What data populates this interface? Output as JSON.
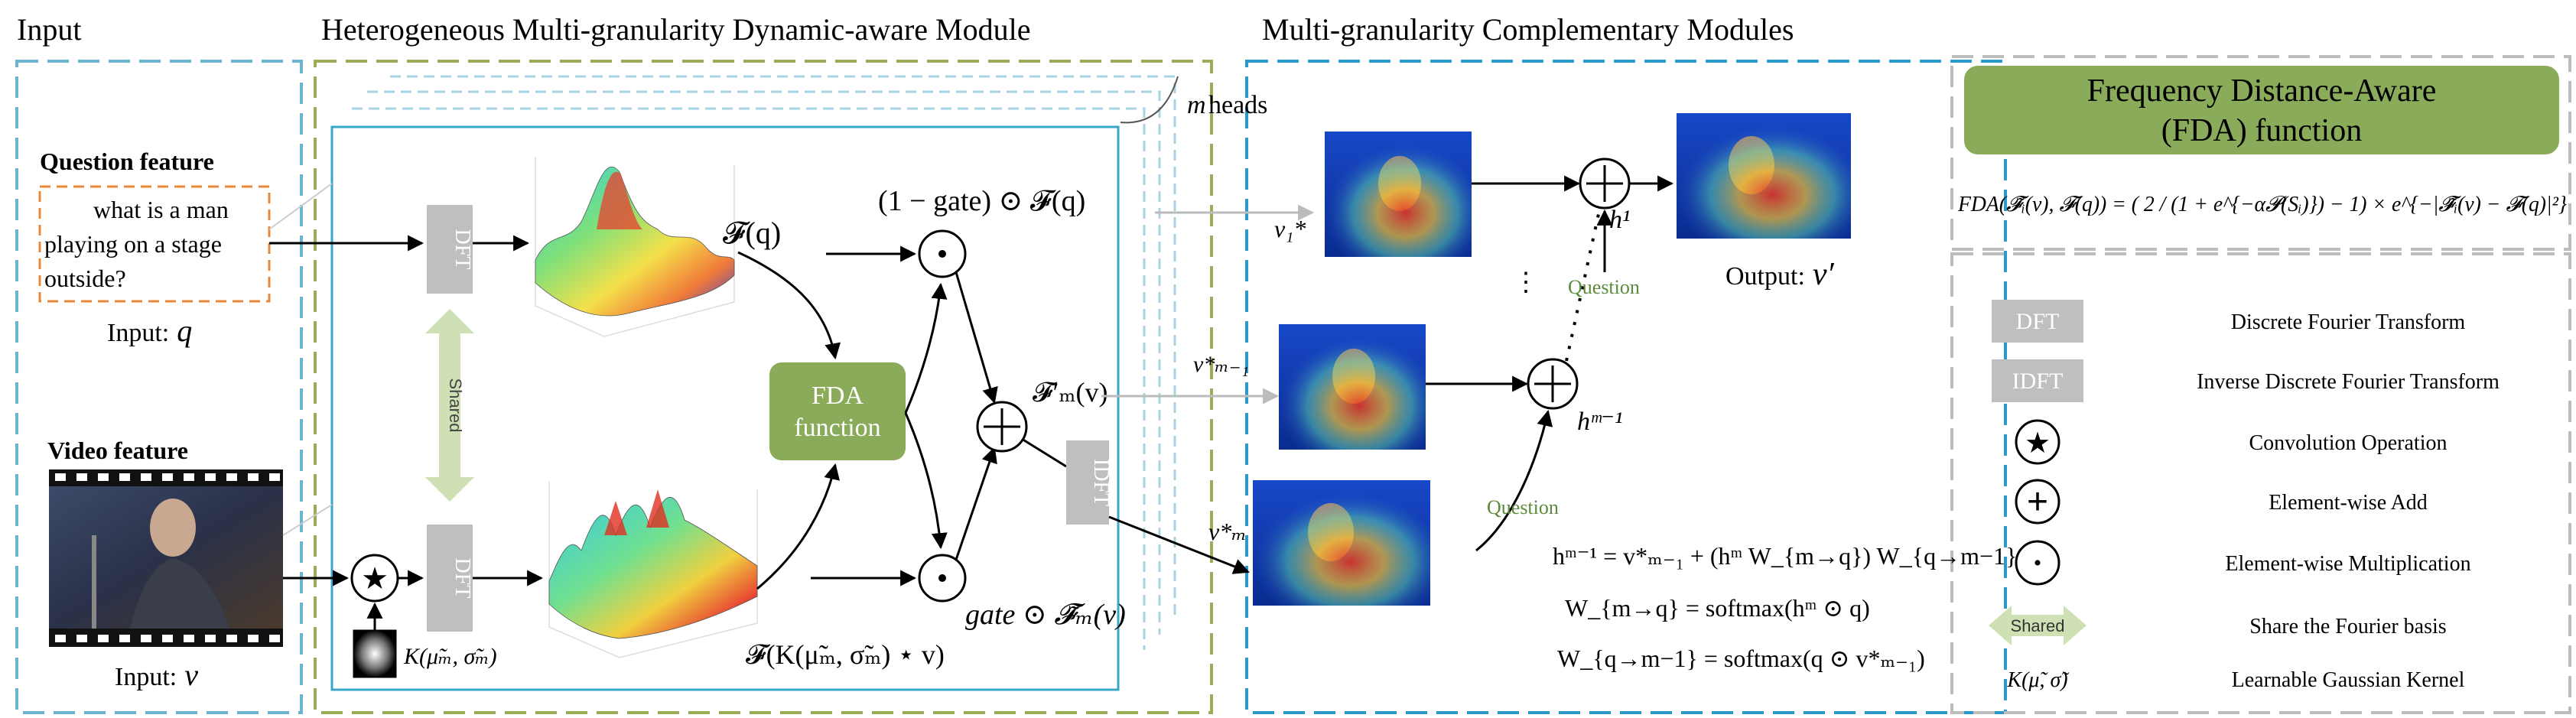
{
  "sections": {
    "input": "Input",
    "hmdm": "Heterogeneous Multi-granularity Dynamic-aware Module",
    "mcm": "Multi-granularity Complementary Modules"
  },
  "heads_label": "heads",
  "heads_symbol": "m",
  "question": {
    "title": "Question feature",
    "line1": "what is a man",
    "line2": "playing on a stage",
    "line3": "outside?",
    "input_label": "Input:",
    "input_symbol": "q"
  },
  "video": {
    "title": "Video feature",
    "input_label": "Input:",
    "input_symbol": "v"
  },
  "blocks": {
    "dft": "DFT",
    "idft": "IDFT",
    "shared": "Shared",
    "fda_line1": "FDA",
    "fda_line2": "function"
  },
  "math": {
    "fq": "𝓕(q)",
    "gate_fq": "(1 − gate) ⊙ 𝓕(q)",
    "fprime": "𝓕′ₘ(v)",
    "gate_ftilde": "gate ⊙ 𝓕̃ₘ(v)",
    "fk": "𝓕(K(μ̃ₘ, σ̃ₘ) ⋆ v)",
    "kernel": "K(μ̃ₘ, σ̃ₘ)"
  },
  "mcm": {
    "v1": "v₁*",
    "vm1": "v*ₘ₋₁",
    "vm": "v*ₘ",
    "h1": "h¹",
    "hm1": "hᵐ⁻¹",
    "question": "Question",
    "output_label": "Output:",
    "output_symbol": "v′",
    "eq1": "hᵐ⁻¹ = v*ₘ₋₁ + (hᵐ W_{m→q}) W_{q→m−1}",
    "eq2": "W_{m→q} = softmax(hᵐ ⊙ q)",
    "eq3": "W_{q→m−1} = softmax(q ⊙ v*ₘ₋₁)"
  },
  "fda": {
    "title_line1": "Frequency Distance-Aware",
    "title_line2": "(FDA) function",
    "formula": "FDA(𝓕̃ᵢ(v), 𝓕(q)) = ( 2 / (1 + e^{−α𝓟(Sᵢ)}) − 1) × e^{−|𝓕̃ᵢ(v) − 𝓕(q)|²}"
  },
  "legend": [
    {
      "symbol": "DFT",
      "desc": "Discrete Fourier Transform"
    },
    {
      "symbol": "IDFT",
      "desc": "Inverse Discrete Fourier Transform"
    },
    {
      "symbol": "★",
      "desc": "Convolution Operation"
    },
    {
      "symbol": "+",
      "desc": "Element-wise Add"
    },
    {
      "symbol": "•",
      "desc": "Element-wise Multiplication"
    },
    {
      "symbol": "Shared",
      "desc": "Share the Fourier basis"
    },
    {
      "symbol": "K(μ̃, σ̃)",
      "desc": "Learnable Gaussian Kernel"
    }
  ],
  "colors": {
    "input_frame": "#6cb4cf",
    "module_frame": "#9aae5a",
    "mcm_frame": "#2b9ac8",
    "legend_frame": "#bdbdbd",
    "gray_block": "#bfbfbf",
    "fda_green": "#8aac5a",
    "question_border": "#e8893a",
    "shared_green": "#cfe0b4",
    "question_text": "#5a8a3a"
  }
}
